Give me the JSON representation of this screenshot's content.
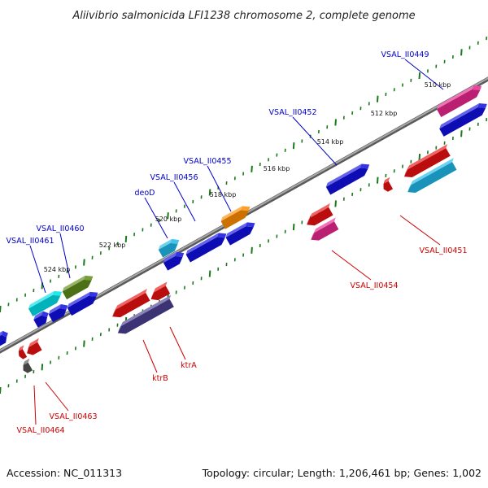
{
  "title": "Aliivibrio salmonicida LFI1238 chromosome 2, complete genome",
  "footer": {
    "accession": "Accession: NC_011313",
    "summary": "Topology: circular; Length: 1,206,461 bp; Genes: 1,002"
  },
  "colors": {
    "backbone": "#8a8a8a",
    "tick": "#1a7a1a",
    "forward_label": "#0000cc",
    "reverse_label": "#cc0000"
  },
  "ticks": {
    "labels": [
      {
        "text": "510 kbp",
        "kbp": 510
      },
      {
        "text": "512 kbp",
        "kbp": 512
      },
      {
        "text": "514 kbp",
        "kbp": 514
      },
      {
        "text": "516 kbp",
        "kbp": 516
      },
      {
        "text": "518 kbp",
        "kbp": 518
      },
      {
        "text": "520 kbp",
        "kbp": 520
      },
      {
        "text": "522 kbp",
        "kbp": 522
      },
      {
        "text": "524 kbp",
        "kbp": 524
      }
    ]
  },
  "genes": {
    "forward": [
      {
        "label": "VSAL_II0449",
        "color": "#e8278f"
      },
      {
        "label": "VSAL_II0452",
        "color": "#1010e0"
      },
      {
        "label": "VSAL_II0455",
        "color": "#ff8c00"
      },
      {
        "label": "VSAL_II0456",
        "color": "#1010e0"
      },
      {
        "label": "deoD",
        "color": "#1fb8e8"
      },
      {
        "label": "VSAL_II0460",
        "color": "#1010e0"
      },
      {
        "label": "VSAL_II0461",
        "color": "#1010e0"
      }
    ],
    "reverse": [
      {
        "label": "VSAL_II0451",
        "color": "#e81010"
      },
      {
        "label": "VSAL_II0454",
        "color": "#e81010"
      },
      {
        "label": "ktrA",
        "color": "#e81010"
      },
      {
        "label": "ktrB",
        "color": "#e81010"
      },
      {
        "label": "VSAL_II0463",
        "color": "#e81010"
      },
      {
        "label": "VSAL_II0464",
        "color": "#e81010"
      }
    ]
  },
  "block_colors": {
    "magenta": "#e8278f",
    "blue": "#1010e0",
    "cyan": "#1fb8e8",
    "aqua": "#00e0e8",
    "orange": "#ff8c00",
    "olive": "#5f8c1a",
    "red": "#e81010",
    "slate": "#4a4090",
    "gray": "#555555"
  }
}
